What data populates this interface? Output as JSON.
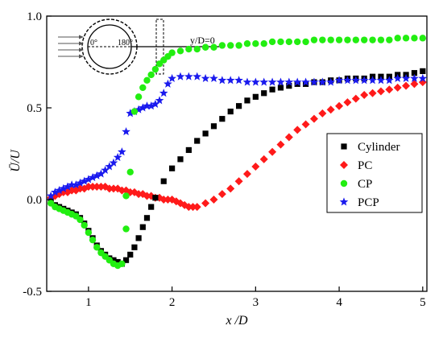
{
  "chart_data": {
    "type": "scatter",
    "xlabel": "x /D",
    "ylabel": "Ū/U",
    "xlim": [
      0.5,
      5.05
    ],
    "ylim": [
      -0.5,
      1.0
    ],
    "x_ticks": [
      1,
      2,
      3,
      4,
      5
    ],
    "y_ticks": [
      -0.5,
      0.0,
      0.5,
      1.0
    ],
    "x_tick_labels": [
      "1",
      "2",
      "3",
      "4",
      "5"
    ],
    "y_tick_labels": [
      "-0.5",
      "0.0",
      "0.5",
      "1.0"
    ],
    "grid": false,
    "legend_position": "right",
    "inset": {
      "angle_0_label": "0°",
      "angle_180_label": "180°",
      "line_label": "y/D=0"
    },
    "series": [
      {
        "name": "Cylinder",
        "color": "#000000",
        "marker": "square",
        "x": [
          0.55,
          0.6,
          0.65,
          0.7,
          0.75,
          0.8,
          0.85,
          0.9,
          0.95,
          1.0,
          1.05,
          1.1,
          1.15,
          1.2,
          1.25,
          1.3,
          1.35,
          1.4,
          1.45,
          1.5,
          1.55,
          1.6,
          1.65,
          1.7,
          1.75,
          1.8,
          1.9,
          2.0,
          2.1,
          2.2,
          2.3,
          2.4,
          2.5,
          2.6,
          2.7,
          2.8,
          2.9,
          3.0,
          3.1,
          3.2,
          3.3,
          3.4,
          3.5,
          3.6,
          3.7,
          3.8,
          3.9,
          4.0,
          4.1,
          4.2,
          4.3,
          4.4,
          4.5,
          4.6,
          4.7,
          4.8,
          4.9,
          5.0
        ],
        "y": [
          -0.01,
          -0.03,
          -0.04,
          -0.05,
          -0.06,
          -0.07,
          -0.08,
          -0.1,
          -0.13,
          -0.17,
          -0.21,
          -0.25,
          -0.28,
          -0.3,
          -0.32,
          -0.33,
          -0.34,
          -0.35,
          -0.33,
          -0.3,
          -0.26,
          -0.21,
          -0.15,
          -0.1,
          -0.04,
          0.01,
          0.1,
          0.17,
          0.22,
          0.27,
          0.32,
          0.36,
          0.4,
          0.44,
          0.48,
          0.51,
          0.54,
          0.56,
          0.58,
          0.6,
          0.61,
          0.62,
          0.63,
          0.63,
          0.64,
          0.64,
          0.65,
          0.65,
          0.66,
          0.66,
          0.66,
          0.67,
          0.67,
          0.67,
          0.68,
          0.68,
          0.69,
          0.7
        ]
      },
      {
        "name": "PC",
        "color": "#ff1a1a",
        "marker": "diamond",
        "x": [
          0.55,
          0.6,
          0.65,
          0.7,
          0.75,
          0.8,
          0.85,
          0.9,
          0.95,
          1.0,
          1.05,
          1.1,
          1.15,
          1.2,
          1.25,
          1.3,
          1.35,
          1.4,
          1.45,
          1.5,
          1.55,
          1.6,
          1.65,
          1.7,
          1.75,
          1.8,
          1.85,
          1.9,
          1.95,
          2.0,
          2.05,
          2.1,
          2.15,
          2.2,
          2.25,
          2.3,
          2.4,
          2.5,
          2.6,
          2.7,
          2.8,
          2.9,
          3.0,
          3.1,
          3.2,
          3.3,
          3.4,
          3.5,
          3.6,
          3.7,
          3.8,
          3.9,
          4.0,
          4.1,
          4.2,
          4.3,
          4.4,
          4.5,
          4.6,
          4.7,
          4.8,
          4.9,
          5.0
        ],
        "y": [
          0.01,
          0.02,
          0.03,
          0.04,
          0.04,
          0.05,
          0.05,
          0.06,
          0.06,
          0.07,
          0.07,
          0.07,
          0.07,
          0.07,
          0.06,
          0.06,
          0.06,
          0.05,
          0.05,
          0.04,
          0.04,
          0.03,
          0.03,
          0.02,
          0.02,
          0.01,
          0.01,
          0.0,
          0.0,
          0.0,
          -0.01,
          -0.02,
          -0.03,
          -0.04,
          -0.04,
          -0.04,
          -0.02,
          0.0,
          0.03,
          0.06,
          0.1,
          0.14,
          0.18,
          0.22,
          0.26,
          0.3,
          0.34,
          0.38,
          0.41,
          0.44,
          0.47,
          0.49,
          0.51,
          0.53,
          0.55,
          0.57,
          0.58,
          0.59,
          0.6,
          0.61,
          0.62,
          0.63,
          0.64
        ]
      },
      {
        "name": "CP",
        "color": "#22ee11",
        "marker": "circle",
        "x": [
          0.55,
          0.6,
          0.65,
          0.7,
          0.75,
          0.8,
          0.85,
          0.9,
          0.95,
          1.0,
          1.05,
          1.1,
          1.15,
          1.2,
          1.25,
          1.3,
          1.35,
          1.4,
          1.45,
          1.45,
          1.5,
          1.55,
          1.6,
          1.65,
          1.7,
          1.75,
          1.8,
          1.85,
          1.9,
          1.95,
          2.0,
          2.1,
          2.2,
          2.3,
          2.4,
          2.5,
          2.6,
          2.7,
          2.8,
          2.9,
          3.0,
          3.1,
          3.2,
          3.3,
          3.4,
          3.5,
          3.6,
          3.7,
          3.8,
          3.9,
          4.0,
          4.1,
          4.2,
          4.3,
          4.4,
          4.5,
          4.6,
          4.7,
          4.8,
          4.9,
          5.0
        ],
        "y": [
          -0.02,
          -0.04,
          -0.05,
          -0.06,
          -0.07,
          -0.08,
          -0.09,
          -0.11,
          -0.14,
          -0.18,
          -0.22,
          -0.26,
          -0.29,
          -0.31,
          -0.33,
          -0.35,
          -0.36,
          -0.35,
          -0.16,
          0.02,
          0.15,
          0.48,
          0.56,
          0.61,
          0.65,
          0.68,
          0.71,
          0.74,
          0.76,
          0.78,
          0.8,
          0.81,
          0.82,
          0.82,
          0.83,
          0.83,
          0.84,
          0.84,
          0.84,
          0.85,
          0.85,
          0.85,
          0.86,
          0.86,
          0.86,
          0.86,
          0.86,
          0.87,
          0.87,
          0.87,
          0.87,
          0.87,
          0.87,
          0.87,
          0.87,
          0.87,
          0.87,
          0.88,
          0.88,
          0.88,
          0.88
        ]
      },
      {
        "name": "PCP",
        "color": "#1a1aee",
        "marker": "star",
        "x": [
          0.55,
          0.6,
          0.65,
          0.7,
          0.75,
          0.8,
          0.85,
          0.9,
          0.95,
          1.0,
          1.05,
          1.1,
          1.15,
          1.2,
          1.25,
          1.3,
          1.35,
          1.4,
          1.45,
          1.5,
          1.55,
          1.6,
          1.65,
          1.7,
          1.75,
          1.8,
          1.85,
          1.9,
          1.95,
          2.0,
          2.1,
          2.2,
          2.3,
          2.4,
          2.5,
          2.6,
          2.7,
          2.8,
          2.9,
          3.0,
          3.1,
          3.2,
          3.3,
          3.4,
          3.5,
          3.6,
          3.7,
          3.8,
          3.9,
          4.0,
          4.1,
          4.2,
          4.3,
          4.4,
          4.5,
          4.6,
          4.7,
          4.8,
          4.9,
          5.0
        ],
        "y": [
          0.02,
          0.04,
          0.05,
          0.06,
          0.07,
          0.08,
          0.08,
          0.09,
          0.1,
          0.11,
          0.12,
          0.13,
          0.14,
          0.16,
          0.18,
          0.2,
          0.23,
          0.26,
          0.37,
          0.47,
          0.48,
          0.49,
          0.5,
          0.51,
          0.51,
          0.52,
          0.54,
          0.58,
          0.63,
          0.66,
          0.67,
          0.67,
          0.67,
          0.66,
          0.66,
          0.65,
          0.65,
          0.65,
          0.64,
          0.64,
          0.64,
          0.64,
          0.64,
          0.64,
          0.64,
          0.64,
          0.64,
          0.64,
          0.64,
          0.65,
          0.65,
          0.65,
          0.65,
          0.65,
          0.65,
          0.65,
          0.66,
          0.66,
          0.66,
          0.66
        ]
      }
    ]
  }
}
